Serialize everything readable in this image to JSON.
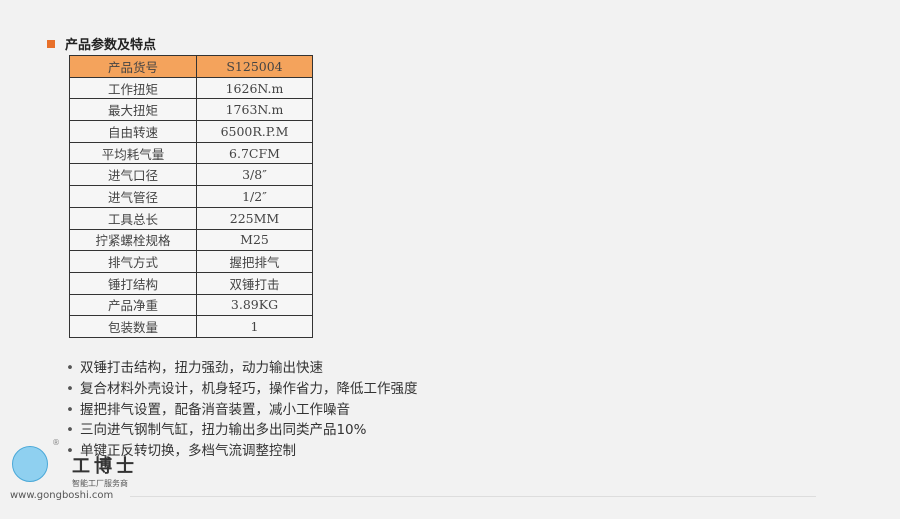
{
  "section_title": "产品参数及特点",
  "table": [
    [
      "产品货号",
      "S125004"
    ],
    [
      "工作扭矩",
      "1626N.m"
    ],
    [
      "最大扭矩",
      "1763N.m"
    ],
    [
      "自由转速",
      "6500R.P.M"
    ],
    [
      "平均耗气量",
      "6.7CFM"
    ],
    [
      "进气口径",
      "3/8″"
    ],
    [
      "进气管径",
      "1/2″"
    ],
    [
      "工具总长",
      "225MM"
    ],
    [
      "拧紧螺栓规格",
      "M25"
    ],
    [
      "排气方式",
      "握把排气"
    ],
    [
      "锤打结构",
      "双锤打击"
    ],
    [
      "产品净重",
      "3.89KG"
    ],
    [
      "包装数量",
      "1"
    ]
  ],
  "features": [
    "双锤打击结构，扭力强劲，动力输出快速",
    "复合材料外壳设计，机身轻巧，操作省力，降低工作强度",
    "握把排气设置，配备消音装置，减小工作噪音",
    "三向进气钢制气缸，扭力输出多出同类产品10%",
    "单键正反转切换，多档气流调整控制"
  ],
  "watermark": {
    "brand": "工博士",
    "tagline": "智能工厂服务商",
    "url": "www.gongboshi.com",
    "reg": "®"
  },
  "colors": {
    "header": "#f4a35c",
    "accent": "#e8702a"
  }
}
